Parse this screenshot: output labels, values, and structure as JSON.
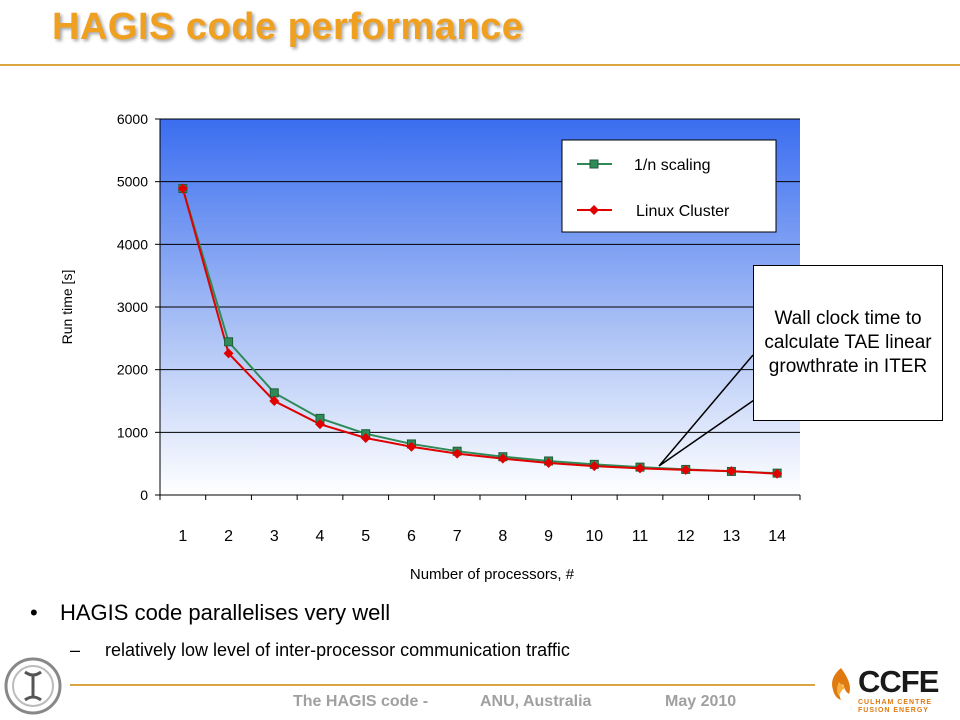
{
  "slide": {
    "title": "HAGIS code performance",
    "callout": "Wall clock time to calculate TAE linear growthrate in ITER",
    "bullet": "HAGIS code parallelises very well",
    "subbullet": "relatively low level of inter-processor communication traffic",
    "footer": {
      "left": "The HAGIS code -",
      "middle": "ANU, Australia",
      "right": "May 2010"
    },
    "logo_text": "CCFE",
    "logo_subtext": "CULHAM CENTRE FUSION ENERGY",
    "colors": {
      "title": "#f0a020",
      "rule": "#d9a441",
      "footer": "#a0a0a0"
    }
  },
  "chart_data": {
    "type": "line",
    "xlabel": "Number of processors, #",
    "ylabel": "Run time [s]",
    "categories": [
      1,
      2,
      3,
      4,
      5,
      6,
      7,
      8,
      9,
      10,
      11,
      12,
      13,
      14
    ],
    "ylim": [
      0,
      6000
    ],
    "yticks": [
      0,
      1000,
      2000,
      3000,
      4000,
      5000,
      6000
    ],
    "grid": true,
    "legend_position": "top-right",
    "series": [
      {
        "name": "1/n scaling",
        "color": "#2e8b57",
        "marker": "square",
        "values": [
          4890,
          2445,
          1630,
          1223,
          978,
          815,
          699,
          611,
          543,
          489,
          445,
          408,
          376,
          349
        ]
      },
      {
        "name": "Linux Cluster",
        "color": "#e00000",
        "marker": "diamond",
        "values": [
          4890,
          2260,
          1500,
          1130,
          910,
          770,
          660,
          580,
          510,
          460,
          425,
          400,
          380,
          340
        ]
      }
    ]
  }
}
